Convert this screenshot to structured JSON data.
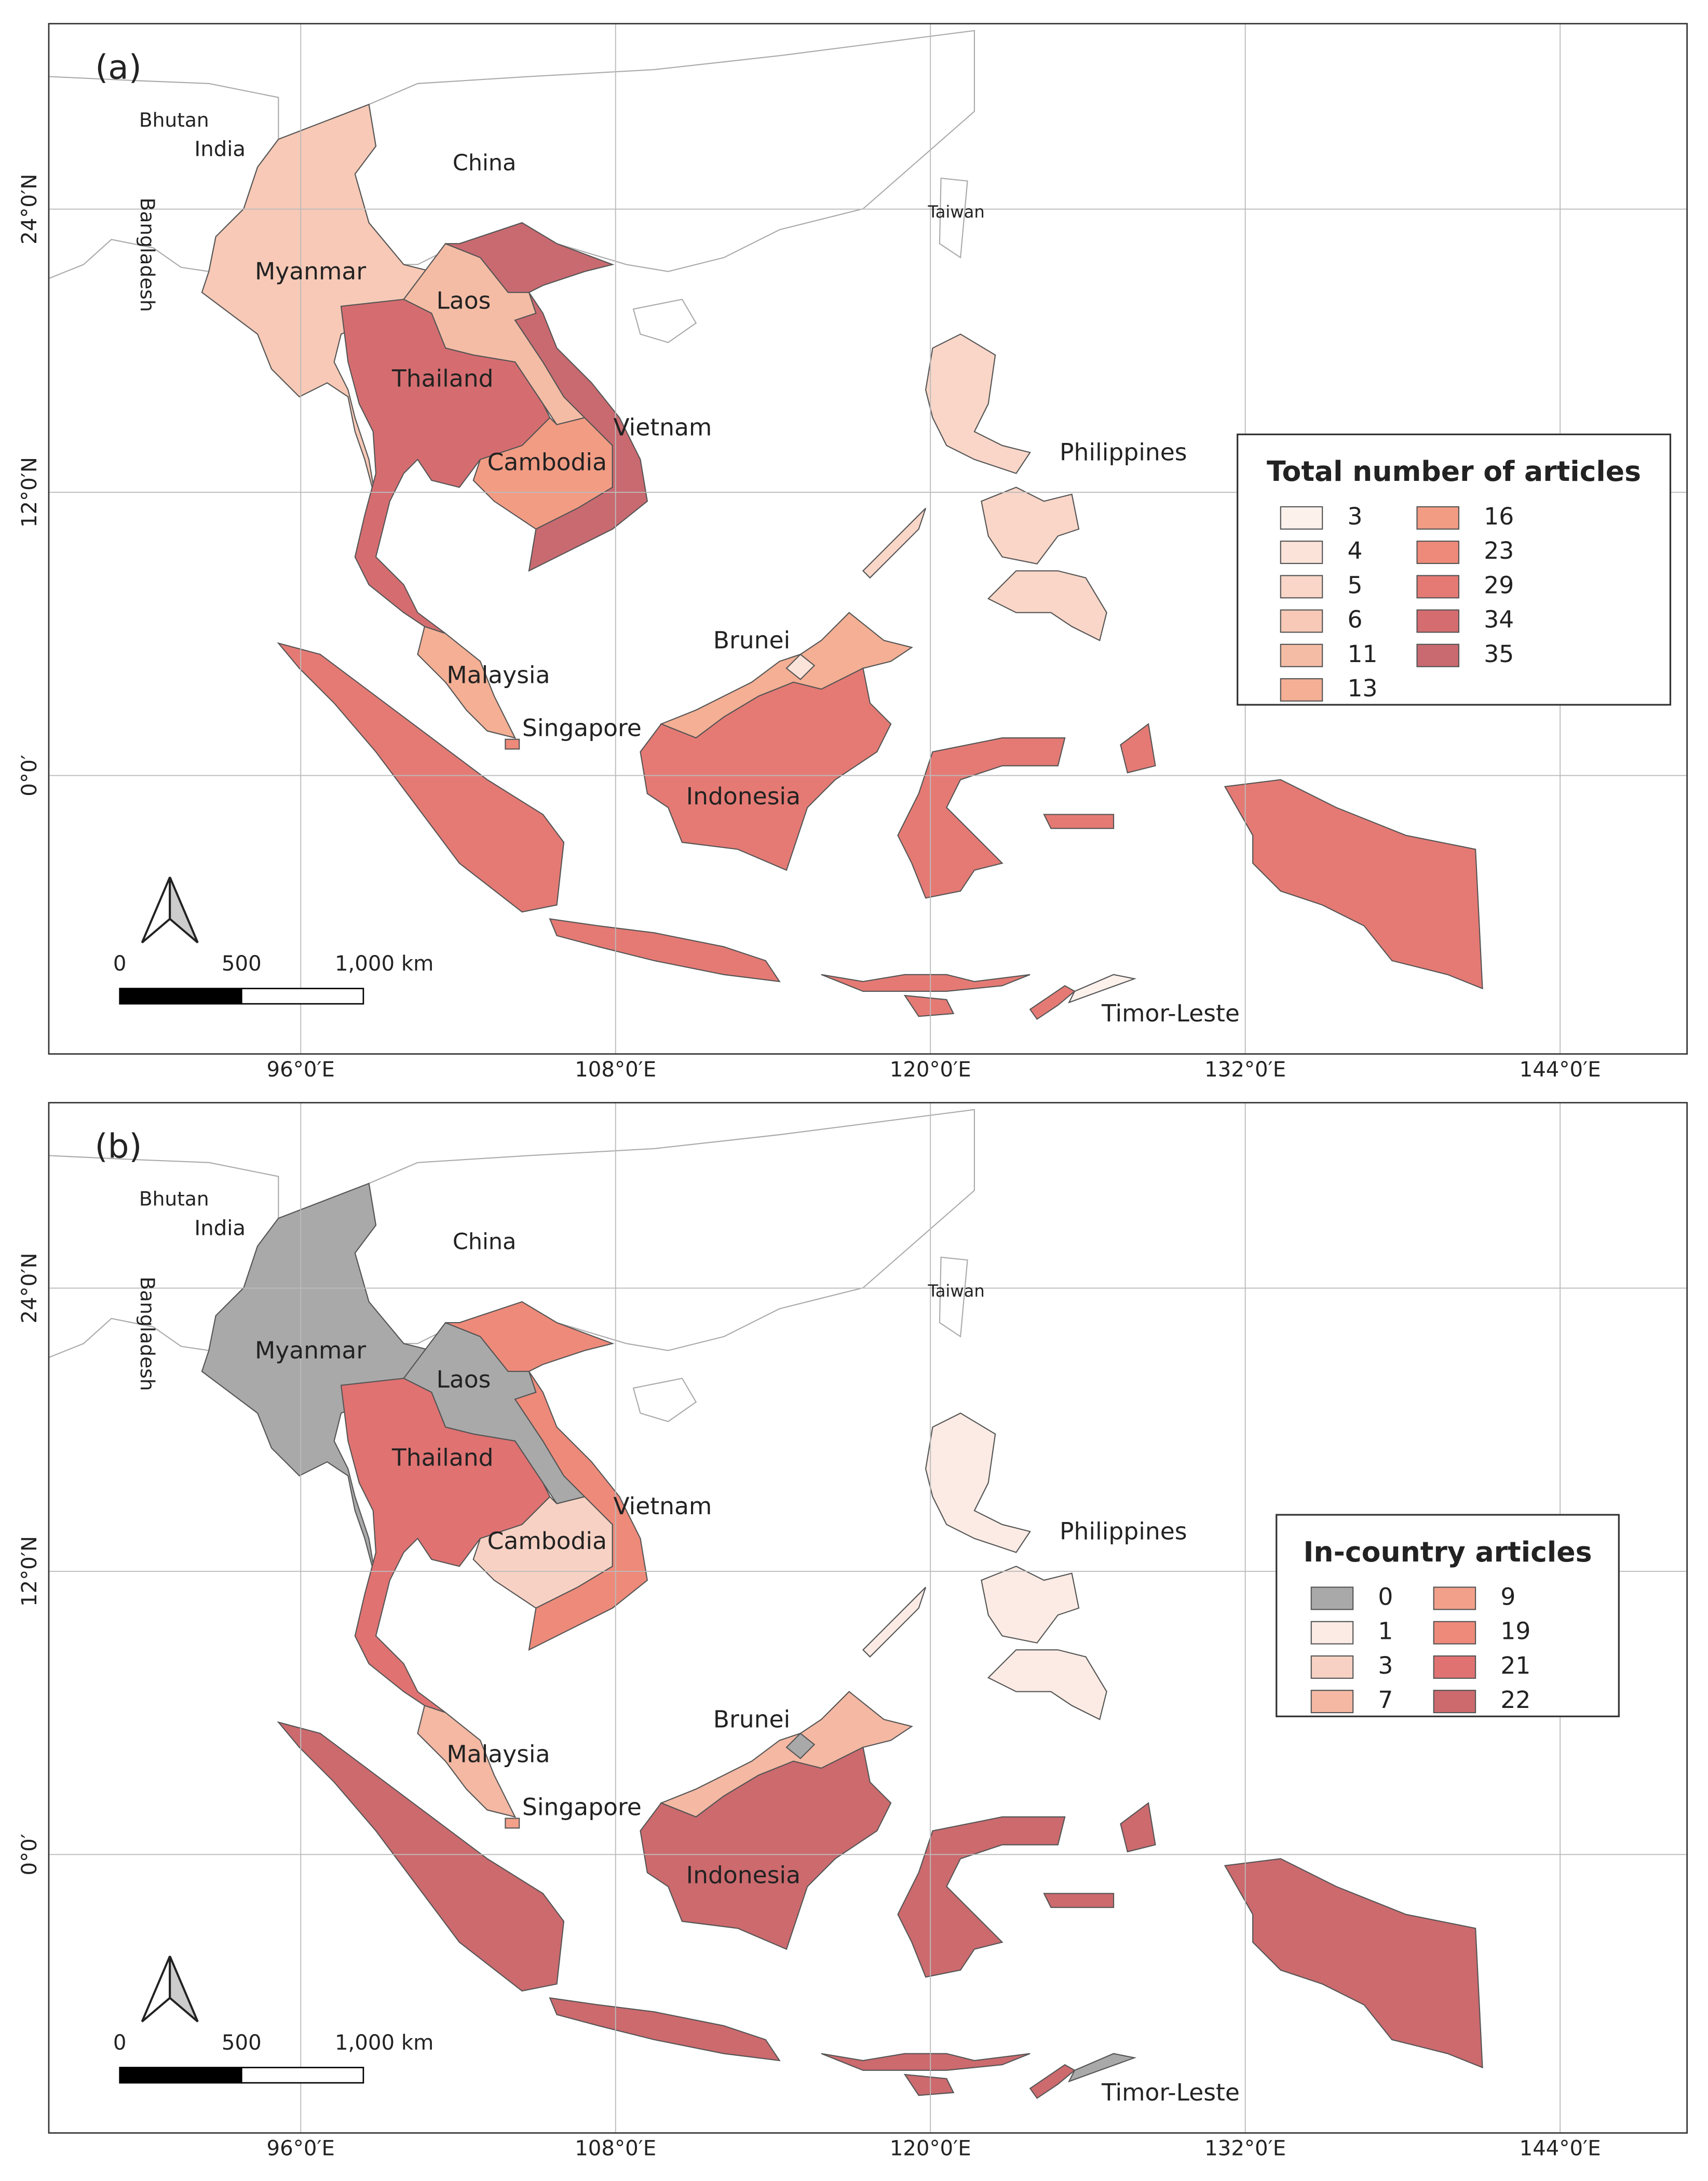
{
  "panels": [
    {
      "label": "(a)",
      "legend": {
        "title": "Total number of articles",
        "items": [
          {
            "value": 3,
            "color": "#fdf1ec"
          },
          {
            "value": 4,
            "color": "#fbe3da"
          },
          {
            "value": 5,
            "color": "#f9d6c8"
          },
          {
            "value": 6,
            "color": "#f7c9b6"
          },
          {
            "value": 11,
            "color": "#f5bca5"
          },
          {
            "value": 13,
            "color": "#f4af94"
          },
          {
            "value": 16,
            "color": "#f29c84"
          },
          {
            "value": 23,
            "color": "#ee8a7a"
          },
          {
            "value": 29,
            "color": "#e57a74"
          },
          {
            "value": 34,
            "color": "#d56d70"
          },
          {
            "value": 35,
            "color": "#c96a70"
          }
        ]
      },
      "countries": [
        {
          "name": "Myanmar",
          "value": 6
        },
        {
          "name": "Laos",
          "value": 11
        },
        {
          "name": "Thailand",
          "value": 34
        },
        {
          "name": "Cambodia",
          "value": 16
        },
        {
          "name": "Vietnam",
          "value": 35
        },
        {
          "name": "Malaysia",
          "value": 13
        },
        {
          "name": "Singapore",
          "value": 23
        },
        {
          "name": "Brunei",
          "value": 4
        },
        {
          "name": "Indonesia",
          "value": 29
        },
        {
          "name": "Philippines",
          "value": 5
        },
        {
          "name": "Timor-Leste",
          "value": 3
        }
      ],
      "places": [
        "Bhutan",
        "India",
        "China",
        "Taiwan",
        "Bangladesh"
      ]
    },
    {
      "label": "(b)",
      "legend": {
        "title": "In-country articles",
        "items": [
          {
            "value": 0,
            "color": "#a9a9a9"
          },
          {
            "value": 1,
            "color": "#fbebe4"
          },
          {
            "value": 3,
            "color": "#f7d2c4"
          },
          {
            "value": 7,
            "color": "#f4b8a3"
          },
          {
            "value": 9,
            "color": "#f2a08a"
          },
          {
            "value": 19,
            "color": "#ee8a7a"
          },
          {
            "value": 21,
            "color": "#e07272"
          },
          {
            "value": 22,
            "color": "#cc6a6e"
          }
        ]
      },
      "countries": [
        {
          "name": "Myanmar",
          "value": 0
        },
        {
          "name": "Laos",
          "value": 0
        },
        {
          "name": "Thailand",
          "value": 21
        },
        {
          "name": "Cambodia",
          "value": 3
        },
        {
          "name": "Vietnam",
          "value": 19
        },
        {
          "name": "Malaysia",
          "value": 7
        },
        {
          "name": "Singapore",
          "value": 9
        },
        {
          "name": "Brunei",
          "value": 0
        },
        {
          "name": "Indonesia",
          "value": 22
        },
        {
          "name": "Philippines",
          "value": 1
        },
        {
          "name": "Timor-Leste",
          "value": 0
        }
      ],
      "places": [
        "Bhutan",
        "India",
        "China",
        "Taiwan",
        "Bangladesh"
      ]
    }
  ],
  "graticule": {
    "lon": [
      {
        "value": 96,
        "label": "96°0′E"
      },
      {
        "value": 108,
        "label": "108°0′E"
      },
      {
        "value": 120,
        "label": "120°0′E"
      },
      {
        "value": 132,
        "label": "132°0′E"
      },
      {
        "value": 144,
        "label": "144°0′E"
      }
    ],
    "lat": [
      {
        "value": 24,
        "label": "24°0′N"
      },
      {
        "value": 12,
        "label": "12°0′N"
      },
      {
        "value": 0,
        "label": "0°0′"
      }
    ]
  },
  "scale_bar": {
    "ticks": [
      0,
      500,
      {
        "value": 1000,
        "label": "1,000 km"
      }
    ]
  }
}
